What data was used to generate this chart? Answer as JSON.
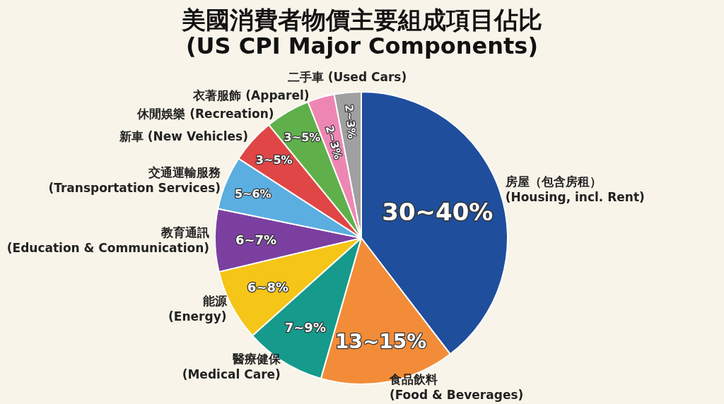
{
  "chart_data": {
    "type": "pie",
    "title": "美國消費者物價主要組成項目佔比\n(US CPI Major Components)",
    "categories": [
      "房屋（包含房租）\n(Housing, incl. Rent)",
      "食品飲料\n(Food & Beverages)",
      "醫療健保\n(Medical Care)",
      "能源\n(Energy)",
      "教育通訊\n(Education & Communication)",
      "交通運輸服務\n(Transportation Services)",
      "新車 (New Vehicles)",
      "休閒娛樂 (Recreation)",
      "衣著服飾 (Apparel)",
      "二手車 (Used Cars)"
    ],
    "values": [
      40,
      15,
      9,
      8,
      7,
      6,
      5,
      5,
      3,
      3
    ],
    "value_labels": [
      "30~40%",
      "13~15%",
      "7~9%",
      "6~8%",
      "6~7%",
      "5~6%",
      "3~5%",
      "3~5%",
      "2~3%",
      "2~3%"
    ],
    "colors": [
      "#1f4e9c",
      "#f28c38",
      "#159a8c",
      "#f5c518",
      "#7b3fa0",
      "#5aaee0",
      "#e04646",
      "#5fb04a",
      "#ee86b4",
      "#a0a0a0"
    ],
    "legend": false
  }
}
